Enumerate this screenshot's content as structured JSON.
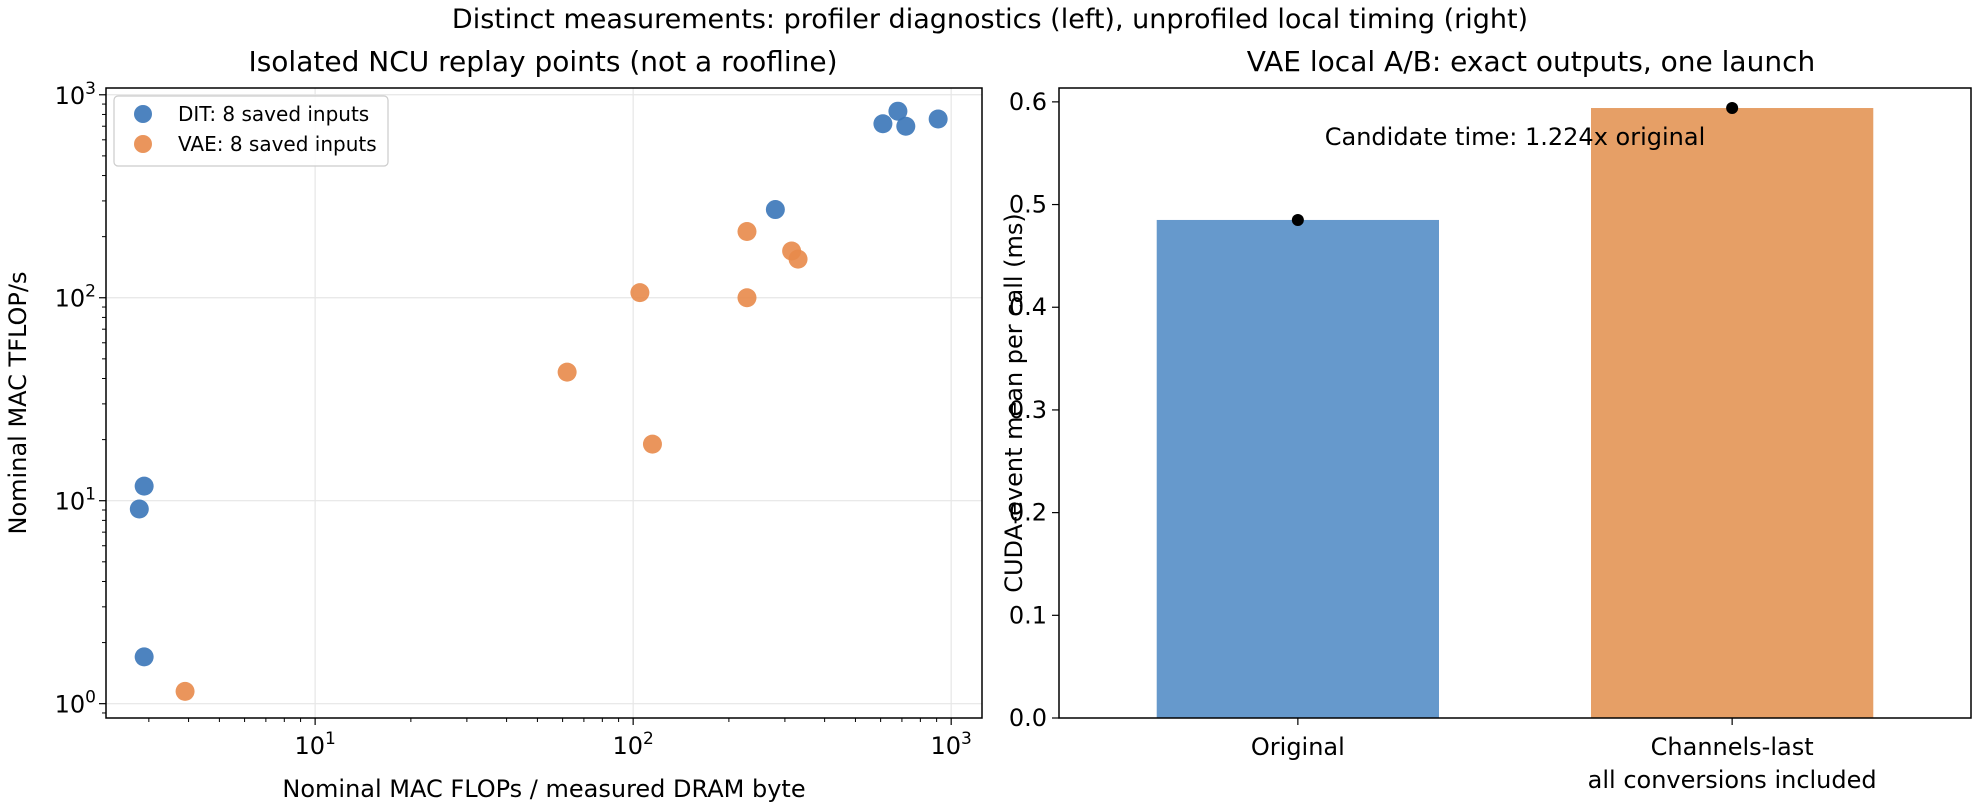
{
  "suptitle": "Distinct measurements: profiler diagnostics (left), unprofiled local timing (right)",
  "colors": {
    "dit": "#3a76b8",
    "vae": "#e8894a",
    "bar_original": "#6699cc",
    "bar_candidate": "#e69f66",
    "errbar": "#000000"
  },
  "chart_data": [
    {
      "type": "scatter",
      "title": "Isolated NCU replay points (not a roofline)",
      "xlabel": "Nominal MAC FLOPs / measured DRAM byte",
      "ylabel": "Nominal MAC TFLOP/s",
      "xscale": "log",
      "yscale": "log",
      "xlim": [
        2.2,
        1250
      ],
      "ylim": [
        0.85,
        1080
      ],
      "xticks": [
        {
          "value": 10,
          "base": "10",
          "exp": "1"
        },
        {
          "value": 100,
          "base": "10",
          "exp": "2"
        },
        {
          "value": 1000,
          "base": "10",
          "exp": "3"
        }
      ],
      "yticks": [
        {
          "value": 1,
          "base": "10",
          "exp": "0"
        },
        {
          "value": 10,
          "base": "10",
          "exp": "1"
        },
        {
          "value": 100,
          "base": "10",
          "exp": "2"
        },
        {
          "value": 1000,
          "base": "10",
          "exp": "3"
        }
      ],
      "grid": true,
      "legend_position": "top-left",
      "series": [
        {
          "name": "DIT: 8 saved inputs",
          "color_key": "dit",
          "points": [
            [
              2.9,
              1.7
            ],
            [
              2.8,
              9.1
            ],
            [
              2.9,
              11.8
            ],
            [
              280,
              272
            ],
            [
              610,
              720
            ],
            [
              680,
              830
            ],
            [
              720,
              700
            ],
            [
              910,
              760
            ]
          ]
        },
        {
          "name": "VAE: 8 saved inputs",
          "color_key": "vae",
          "points": [
            [
              3.9,
              1.15
            ],
            [
              62,
              43
            ],
            [
              105,
              106
            ],
            [
              115,
              19
            ],
            [
              228,
              100
            ],
            [
              228,
              212
            ],
            [
              315,
              170
            ],
            [
              330,
              155
            ]
          ]
        }
      ]
    },
    {
      "type": "bar",
      "title": "VAE local A/B: exact outputs, one launch",
      "ylabel": "CUDA-event mean per call (ms)",
      "categories": [
        [
          "Original"
        ],
        [
          "Channels-last",
          "all conversions included"
        ]
      ],
      "values": [
        0.485,
        0.594
      ],
      "errors": [
        0.004,
        0.002
      ],
      "ylim": [
        0,
        0.6135
      ],
      "yticks": [
        "0.0",
        "0.1",
        "0.2",
        "0.3",
        "0.4",
        "0.5",
        "0.6"
      ],
      "annotation": "Candidate time: 1.224x original"
    }
  ]
}
